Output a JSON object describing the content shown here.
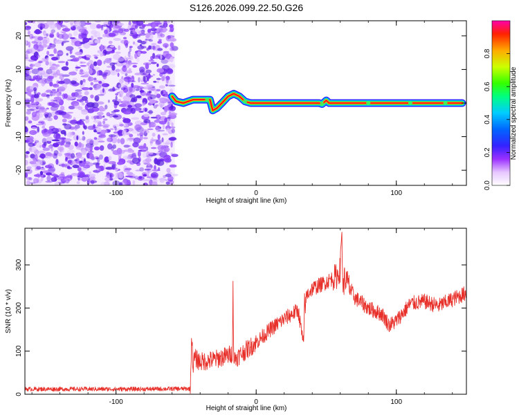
{
  "title": "S126.2026.099.22.50.G26",
  "colors": {
    "snr_line": "#e8302a",
    "noise": "#7a2ff0",
    "axis": "#000000"
  },
  "chart_data": [
    {
      "type": "heatmap",
      "name": "spectrogram",
      "xlabel": "Height of straight line (km)",
      "ylabel": "Frequency (Hz)",
      "xlim": [
        -165,
        150
      ],
      "ylim": [
        -24.5,
        24.5
      ],
      "x_ticks": [
        -100,
        0,
        100
      ],
      "y_ticks": [
        -20,
        -10,
        0,
        10,
        20
      ],
      "noise_region_x": [
        -165,
        -58
      ],
      "tone_track": {
        "x": [
          -60,
          -57,
          -52,
          -45,
          -38,
          -33,
          -31,
          -28,
          -24,
          -20,
          -16,
          -12,
          -8,
          -4,
          0,
          20,
          45,
          47,
          50,
          52,
          60,
          100,
          147
        ],
        "freq": [
          2,
          0.5,
          0,
          1,
          1,
          1,
          -2.2,
          -1.5,
          0.2,
          2.0,
          2.8,
          2.0,
          0.5,
          0,
          0,
          0,
          0,
          -0.3,
          0.8,
          0,
          0,
          0,
          0
        ]
      },
      "colorbar": {
        "label": "Normalized spectral amplitude",
        "range": [
          0,
          1
        ],
        "ticks": [
          "0.0",
          "0.2",
          "0.4",
          "0.6",
          "0.8"
        ]
      }
    },
    {
      "type": "line",
      "name": "snr",
      "xlabel": "Height of straight line (km)",
      "ylabel": "SNR (10 * v/v)",
      "xlim": [
        -165,
        150
      ],
      "ylim": [
        0,
        385
      ],
      "x_ticks": [
        -100,
        0,
        100
      ],
      "y_ticks": [
        0,
        100,
        200,
        300
      ],
      "series": [
        {
          "name": "SNR",
          "x": [
            -165,
            -120,
            -80,
            -47,
            -46,
            -45,
            -44,
            -40,
            -30,
            -20,
            -17,
            -16.5,
            -16,
            -10,
            0,
            10,
            20,
            30,
            34,
            34.5,
            35,
            36,
            40,
            50,
            55,
            58,
            60,
            61,
            62,
            63,
            65,
            70,
            80,
            90,
            95,
            100,
            110,
            120,
            130,
            140,
            150
          ],
          "values": [
            12,
            12,
            12,
            13,
            140,
            60,
            85,
            75,
            80,
            90,
            95,
            255,
            80,
            95,
            120,
            150,
            175,
            195,
            110,
            225,
            200,
            230,
            245,
            260,
            270,
            275,
            290,
            385,
            240,
            270,
            260,
            225,
            200,
            185,
            160,
            170,
            210,
            215,
            205,
            220,
            235
          ]
        }
      ]
    }
  ]
}
